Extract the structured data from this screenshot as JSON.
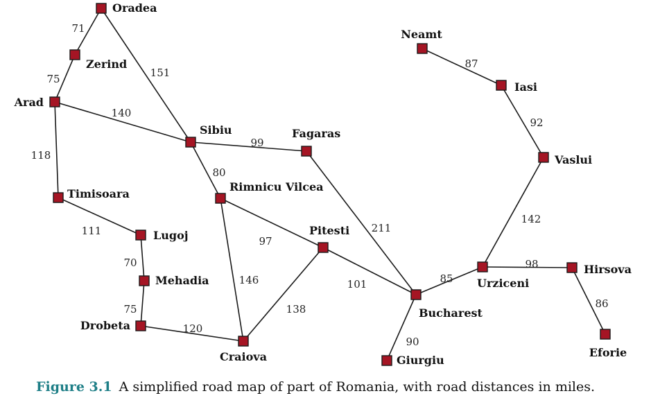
{
  "cities": [
    {
      "id": "oradea",
      "label": "Oradea"
    },
    {
      "id": "zerind",
      "label": "Zerind"
    },
    {
      "id": "arad",
      "label": "Arad"
    },
    {
      "id": "timisoara",
      "label": "Timisoara"
    },
    {
      "id": "lugoj",
      "label": "Lugoj"
    },
    {
      "id": "mehadia",
      "label": "Mehadia"
    },
    {
      "id": "drobeta",
      "label": "Drobeta"
    },
    {
      "id": "craiova",
      "label": "Craiova"
    },
    {
      "id": "sibiu",
      "label": "Sibiu"
    },
    {
      "id": "rimnicu",
      "label": "Rimnicu Vilcea"
    },
    {
      "id": "fagaras",
      "label": "Fagaras"
    },
    {
      "id": "pitesti",
      "label": "Pitesti"
    },
    {
      "id": "bucharest",
      "label": "Bucharest"
    },
    {
      "id": "giurgiu",
      "label": "Giurgiu"
    },
    {
      "id": "urziceni",
      "label": "Urziceni"
    },
    {
      "id": "hirsova",
      "label": "Hirsova"
    },
    {
      "id": "eforie",
      "label": "Eforie"
    },
    {
      "id": "vaslui",
      "label": "Vaslui"
    },
    {
      "id": "iasi",
      "label": "Iasi"
    },
    {
      "id": "neamt",
      "label": "Neamt"
    }
  ],
  "roads": [
    {
      "from": "oradea",
      "to": "zerind",
      "distance": "71"
    },
    {
      "from": "zerind",
      "to": "arad",
      "distance": "75"
    },
    {
      "from": "oradea",
      "to": "sibiu",
      "distance": "151"
    },
    {
      "from": "arad",
      "to": "sibiu",
      "distance": "140"
    },
    {
      "from": "arad",
      "to": "timisoara",
      "distance": "118"
    },
    {
      "from": "timisoara",
      "to": "lugoj",
      "distance": "111"
    },
    {
      "from": "lugoj",
      "to": "mehadia",
      "distance": "70"
    },
    {
      "from": "mehadia",
      "to": "drobeta",
      "distance": "75"
    },
    {
      "from": "drobeta",
      "to": "craiova",
      "distance": "120"
    },
    {
      "from": "sibiu",
      "to": "fagaras",
      "distance": "99"
    },
    {
      "from": "sibiu",
      "to": "rimnicu",
      "distance": "80"
    },
    {
      "from": "rimnicu",
      "to": "pitesti",
      "distance": "97"
    },
    {
      "from": "rimnicu",
      "to": "craiova",
      "distance": "146"
    },
    {
      "from": "craiova",
      "to": "pitesti",
      "distance": "138"
    },
    {
      "from": "fagaras",
      "to": "bucharest",
      "distance": "211"
    },
    {
      "from": "pitesti",
      "to": "bucharest",
      "distance": "101"
    },
    {
      "from": "bucharest",
      "to": "giurgiu",
      "distance": "90"
    },
    {
      "from": "bucharest",
      "to": "urziceni",
      "distance": "85"
    },
    {
      "from": "urziceni",
      "to": "hirsova",
      "distance": "98"
    },
    {
      "from": "hirsova",
      "to": "eforie",
      "distance": "86"
    },
    {
      "from": "urziceni",
      "to": "vaslui",
      "distance": "142"
    },
    {
      "from": "vaslui",
      "to": "iasi",
      "distance": "92"
    },
    {
      "from": "iasi",
      "to": "neamt",
      "distance": "87"
    }
  ],
  "caption": {
    "label": "Figure 3.1",
    "text": "A simplified road map of part of Romania, with road distances in miles."
  },
  "colors": {
    "node_fill": "#a51524",
    "caption_label": "#1d7e86"
  }
}
